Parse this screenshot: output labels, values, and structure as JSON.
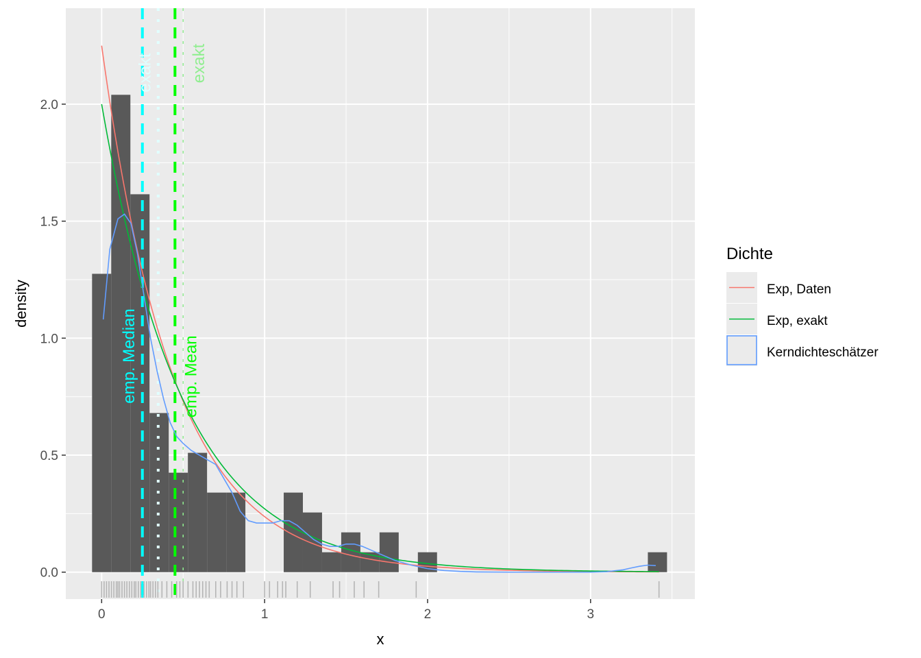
{
  "chart_data": {
    "type": "histogram",
    "xlabel": "x",
    "ylabel": "density",
    "xlim": [
      -0.22,
      3.64
    ],
    "ylim": [
      -0.115,
      2.41
    ],
    "x_ticks": [
      0,
      1,
      2,
      3
    ],
    "x_tick_labels": [
      "0",
      "1",
      "2",
      "3"
    ],
    "y_ticks": [
      0.0,
      0.5,
      1.0,
      1.5,
      2.0
    ],
    "y_tick_labels": [
      "0.0",
      "0.5",
      "1.0",
      "1.5",
      "2.0"
    ],
    "grid": true,
    "panel_background": "#EBEBEB",
    "histogram": {
      "bin_width": 0.1176,
      "first_bin_center": 0.0,
      "density": [
        1.275,
        2.04,
        1.615,
        0.68,
        0.425,
        0.51,
        0.34,
        0.34,
        0.0,
        0.0,
        0.34,
        0.255,
        0.085,
        0.17,
        0.085,
        0.17,
        0.0,
        0.085,
        0.0,
        0.0,
        0.0,
        0.0,
        0.0,
        0.0,
        0.0,
        0.0,
        0.0,
        0.0,
        0.0,
        0.085
      ],
      "color": "#595959"
    },
    "series": [
      {
        "name": "Exp, Daten",
        "color": "#F8766D",
        "function": "exponential",
        "rate": 2.25,
        "x_range": [
          0,
          3.42
        ]
      },
      {
        "name": "Exp, exakt",
        "color": "#00BA38",
        "function": "exponential",
        "rate": 2.0,
        "x_range": [
          0,
          3.42
        ]
      },
      {
        "name": "Kerndichteschätzer",
        "color": "#619CFF",
        "x": [
          0.01,
          0.05,
          0.1,
          0.14,
          0.18,
          0.22,
          0.26,
          0.3,
          0.34,
          0.38,
          0.42,
          0.46,
          0.5,
          0.55,
          0.6,
          0.7,
          0.8,
          0.85,
          0.9,
          0.95,
          1.0,
          1.05,
          1.1,
          1.15,
          1.2,
          1.25,
          1.3,
          1.35,
          1.4,
          1.45,
          1.5,
          1.55,
          1.6,
          1.7,
          1.8,
          1.9,
          2.0,
          2.1,
          2.2,
          2.3,
          2.5,
          2.8,
          3.0,
          3.1,
          3.2,
          3.25,
          3.3,
          3.35,
          3.4
        ],
        "y": [
          1.08,
          1.38,
          1.51,
          1.53,
          1.49,
          1.36,
          1.18,
          1.0,
          0.86,
          0.74,
          0.64,
          0.58,
          0.55,
          0.52,
          0.5,
          0.46,
          0.34,
          0.26,
          0.22,
          0.21,
          0.21,
          0.21,
          0.22,
          0.22,
          0.2,
          0.17,
          0.14,
          0.12,
          0.11,
          0.11,
          0.12,
          0.12,
          0.11,
          0.08,
          0.05,
          0.03,
          0.015,
          0.007,
          0.003,
          0.001,
          0.0,
          0.0,
          0.0,
          0.002,
          0.01,
          0.018,
          0.025,
          0.03,
          0.028
        ]
      }
    ],
    "vlines": [
      {
        "label": "emp. Median",
        "x": 0.25,
        "color": "#00FFFF",
        "dash": "dashed",
        "width": 4
      },
      {
        "label": "exakt",
        "x": 0.347,
        "color": "#E0FFFF",
        "dash": "dotted",
        "width": 4
      },
      {
        "label": "emp. Mean",
        "x": 0.45,
        "color": "#00FF00",
        "dash": "dashed",
        "width": 4
      },
      {
        "label": "exakt",
        "x": 0.5,
        "color": "#90EE90",
        "dash": "dotted",
        "width": 1.5
      }
    ],
    "annotations": [
      {
        "text": "emp. Median",
        "x": 0.2,
        "y": 0.72,
        "color": "#00FFFF",
        "rotation": -90
      },
      {
        "text": "exakt",
        "x": 0.3,
        "y": 2.05,
        "color": "#E0FFFF",
        "rotation": -90
      },
      {
        "text": "emp. Mean",
        "x": 0.58,
        "y": 0.66,
        "color": "#00FF00",
        "rotation": -90
      },
      {
        "text": "exakt",
        "x": 0.63,
        "y": 2.09,
        "color": "#90EE90",
        "rotation": -90
      }
    ],
    "rug": {
      "color": "#B5B5B5",
      "highlight_color": "#00FFFF",
      "x": [
        0.0,
        0.015,
        0.03,
        0.045,
        0.06,
        0.075,
        0.09,
        0.1,
        0.11,
        0.125,
        0.14,
        0.155,
        0.17,
        0.185,
        0.2,
        0.21,
        0.225,
        0.24,
        0.25,
        0.26,
        0.275,
        0.29,
        0.3,
        0.315,
        0.33,
        0.345,
        0.37,
        0.4,
        0.43,
        0.46,
        0.48,
        0.5,
        0.53,
        0.56,
        0.58,
        0.6,
        0.62,
        0.64,
        0.66,
        0.7,
        0.73,
        0.77,
        0.8,
        0.83,
        0.87,
        1.0,
        1.03,
        1.08,
        1.11,
        1.13,
        1.2,
        1.28,
        1.42,
        1.46,
        1.55,
        1.61,
        1.7,
        1.93,
        3.42
      ]
    },
    "legend": {
      "title": "Dichte",
      "position": "right",
      "entries": [
        {
          "label": "Exp, Daten",
          "color": "#F8766D",
          "type": "line"
        },
        {
          "label": "Exp, exakt",
          "color": "#00BA38",
          "type": "line"
        },
        {
          "label": "Kerndichteschätzer",
          "color": "#619CFF",
          "type": "box"
        }
      ]
    }
  }
}
